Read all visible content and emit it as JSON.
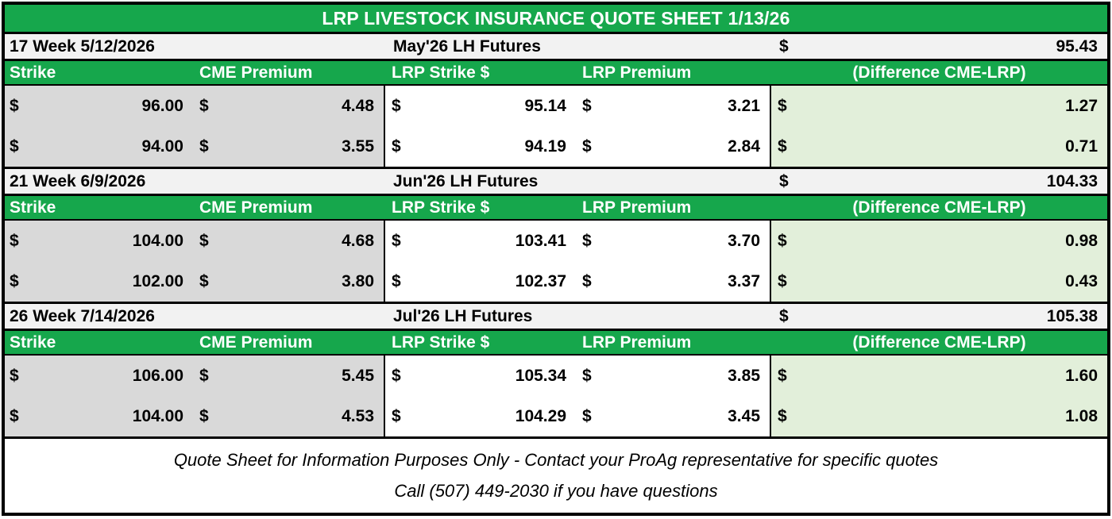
{
  "title": "LRP LIVESTOCK INSURANCE QUOTE SHEET 1/13/26",
  "currency_symbol": "$",
  "columns": [
    "Strike",
    "CME Premium",
    "LRP Strike $",
    "LRP Premium",
    "(Difference CME-LRP)"
  ],
  "sections": [
    {
      "week_label": "17 Week 5/12/2026",
      "futures_label": "May'26 LH Futures",
      "futures_price": "95.43",
      "rows": [
        {
          "strike": "96.00",
          "cme_premium": "4.48",
          "lrp_strike": "95.14",
          "lrp_premium": "3.21",
          "difference": "1.27"
        },
        {
          "strike": "94.00",
          "cme_premium": "3.55",
          "lrp_strike": "94.19",
          "lrp_premium": "2.84",
          "difference": "0.71"
        }
      ]
    },
    {
      "week_label": "21 Week 6/9/2026",
      "futures_label": "Jun'26 LH Futures",
      "futures_price": "104.33",
      "rows": [
        {
          "strike": "104.00",
          "cme_premium": "4.68",
          "lrp_strike": "103.41",
          "lrp_premium": "3.70",
          "difference": "0.98"
        },
        {
          "strike": "102.00",
          "cme_premium": "3.80",
          "lrp_strike": "102.37",
          "lrp_premium": "3.37",
          "difference": "0.43"
        }
      ]
    },
    {
      "week_label": "26 Week 7/14/2026",
      "futures_label": "Jul'26 LH Futures",
      "futures_price": "105.38",
      "rows": [
        {
          "strike": "106.00",
          "cme_premium": "5.45",
          "lrp_strike": "105.34",
          "lrp_premium": "3.85",
          "difference": "1.60"
        },
        {
          "strike": "104.00",
          "cme_premium": "4.53",
          "lrp_strike": "104.29",
          "lrp_premium": "3.45",
          "difference": "1.08"
        }
      ]
    }
  ],
  "footer": {
    "line1": "Quote Sheet for Information Purposes Only - Contact your ProAg representative for specific quotes",
    "line2": "Call (507) 449-2030 if you have questions"
  },
  "colors": {
    "header_green": "#16a74c",
    "cell_gray": "#d9d9d9",
    "diff_green": "#e2efda",
    "section_row_gray": "#f2f2f2",
    "border_black": "#000000"
  }
}
